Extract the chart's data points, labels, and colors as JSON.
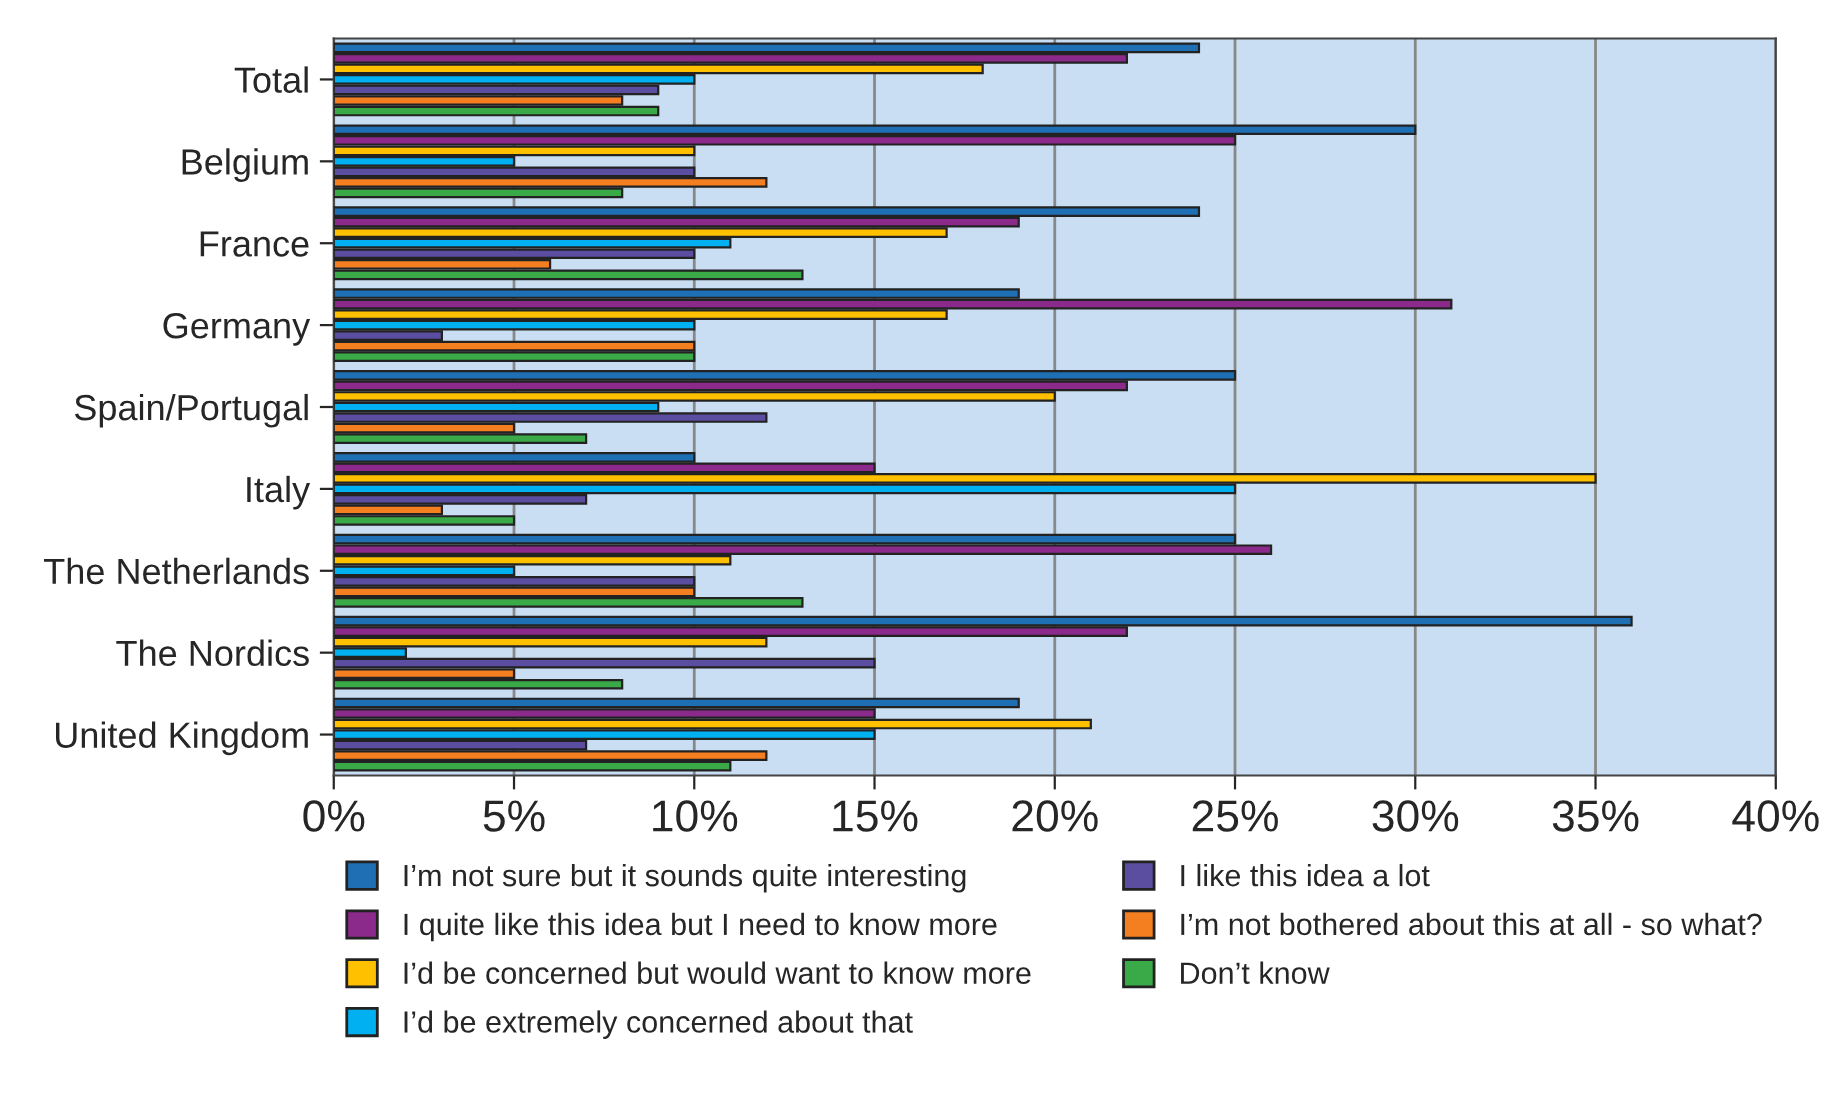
{
  "chart_data": {
    "type": "bar",
    "orientation": "horizontal",
    "categories": [
      "Total",
      "Belgium",
      "France",
      "Germany",
      "Spain/Portugal",
      "Italy",
      "The Netherlands",
      "The Nordics",
      "United Kingdom"
    ],
    "series": [
      {
        "name": "I’m not sure but it sounds quite interesting",
        "color": "#1f6fb4",
        "values": [
          24,
          30,
          24,
          19,
          25,
          10,
          25,
          36,
          19
        ]
      },
      {
        "name": "I quite like this idea but I need to know more",
        "color": "#8b2a8b",
        "values": [
          22,
          25,
          19,
          31,
          22,
          15,
          26,
          22,
          15
        ]
      },
      {
        "name": "I’d be concerned but would want to know more",
        "color": "#ffc000",
        "values": [
          18,
          10,
          17,
          17,
          20,
          35,
          11,
          12,
          21
        ]
      },
      {
        "name": "I’d be extremely concerned about that",
        "color": "#00b0f0",
        "values": [
          10,
          5,
          11,
          10,
          9,
          25,
          5,
          2,
          15
        ]
      },
      {
        "name": "I like this idea a lot",
        "color": "#5b4ea0",
        "values": [
          9,
          10,
          10,
          3,
          12,
          7,
          10,
          15,
          7
        ]
      },
      {
        "name": "I’m not bothered about this at all - so what?",
        "color": "#f47f20",
        "values": [
          8,
          12,
          6,
          10,
          5,
          3,
          10,
          5,
          12
        ]
      },
      {
        "name": "Don’t know",
        "color": "#3aaa48",
        "values": [
          9,
          8,
          13,
          10,
          7,
          5,
          13,
          8,
          11
        ]
      }
    ],
    "xlim": [
      0,
      40
    ],
    "xticks": [
      {
        "value": 0,
        "label": "0%"
      },
      {
        "value": 5,
        "label": "5%"
      },
      {
        "value": 10,
        "label": "10%"
      },
      {
        "value": 15,
        "label": "15%"
      },
      {
        "value": 20,
        "label": "20%"
      },
      {
        "value": 25,
        "label": "25%"
      },
      {
        "value": 30,
        "label": "30%"
      },
      {
        "value": 35,
        "label": "35%"
      },
      {
        "value": 40,
        "label": "40%"
      }
    ],
    "grid": "x",
    "legend": "bottom"
  }
}
